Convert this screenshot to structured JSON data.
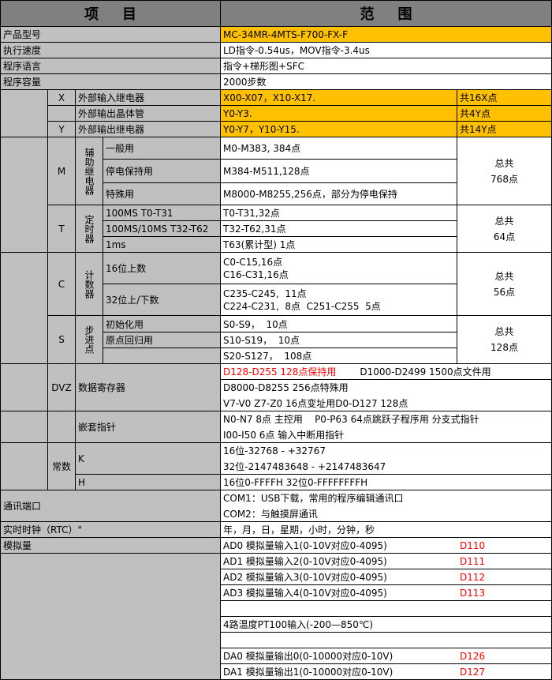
{
  "header": {
    "item": "项目",
    "range": "范围"
  },
  "rows": {
    "model": {
      "label": "产品型号",
      "value": "MC-34MR-4MTS-F700-FX-F"
    },
    "speed": {
      "label": "执行速度",
      "value": "LD指令-0.54us，MOV指令-3.4us"
    },
    "lang": {
      "label": "程序语言",
      "value": "指令+梯形图+SFC"
    },
    "capacity": {
      "label": "程序容量",
      "value": "2000步数"
    }
  },
  "io": [
    {
      "code": "X",
      "label": "外部输入继电器",
      "value": "X00-X07，X10-X17.",
      "count": "共16X点"
    },
    {
      "code": "",
      "label": "外部输出晶体管",
      "value": "Y0-Y3.",
      "count": "共4Y点"
    },
    {
      "code": "Y",
      "label": "外部输出继电器",
      "value": "Y0-Y7，Y10-Y15.",
      "count": "共14Y点"
    }
  ],
  "m": {
    "code": "M",
    "group": "辅助继电器",
    "items": [
      {
        "label": "一般用",
        "value": "M0-M383, 384点"
      },
      {
        "label": "停电保持用",
        "value": "M384-M511,128点"
      },
      {
        "label": "特殊用",
        "value": "M8000-M8255,256点，部分为停电保持"
      }
    ],
    "total1": "总共",
    "total2": "768点"
  },
  "t": {
    "code": "T",
    "group": "定时器",
    "items": [
      {
        "label": "100MS T0-T31",
        "value": "T0-T31,32点"
      },
      {
        "label": "100MS/10MS T32-T62",
        "value": "T32-T62,31点"
      },
      {
        "label": "1ms",
        "value": "T63(累计型) 1点"
      }
    ],
    "total1": "总共",
    "total2": "64点"
  },
  "cnt": {
    "code": "C",
    "group": "计数器",
    "items": [
      {
        "label": "16位上数",
        "v1": "C0-C15,16点",
        "v2": "C16-C31,16点"
      },
      {
        "label": "32位上/下数",
        "v1": "C235-C245,  11点",
        "v2": "C224-C231,  8点  C251-C255  5点"
      }
    ],
    "total1": "总共",
    "total2": "56点"
  },
  "s": {
    "code": "S",
    "group": "步进点",
    "items": [
      {
        "label": "初始化用",
        "value": "S0-S9，  10点"
      },
      {
        "label": "原点回归用",
        "value": "S10-S19，  10点"
      },
      {
        "label": "",
        "value": "S20-S127，  108点"
      }
    ],
    "total1": "总共",
    "total2": "128点"
  },
  "dvz": {
    "code": "DVZ",
    "label": "数据寄存器",
    "v1_red": "D128-D255 128点保持用",
    "v1": "D1000-D2499 1500点文件用",
    "v2": "D8000-D8255 256点特殊用",
    "v3": "V7-V0 Z7-Z0 16点变址用D0-D127 128点"
  },
  "nest": {
    "label": "嵌套指针",
    "v1": "N0-N7 8点 主控用    P0-P63 64点跳跃子程序用 分支式指针",
    "v2": "I00-I50 6点 输入中断用指针"
  },
  "const": {
    "label": "常数",
    "k": "K",
    "k1": "16位-32768 - +32767",
    "k2": "32位-2147483648 - +2147483647",
    "h": "H",
    "h1": "16位0-FFFFH 32位0-FFFFFFFFH"
  },
  "comm": {
    "label": "通讯端口",
    "v1": "COM1：USB下载，常用的程序编辑通讯口",
    "v2": "COM2：与触摸屏通讯"
  },
  "rtc": {
    "label": "实时时钟（RTC）\"",
    "value": "年，月，日，星期，小时，分钟，秒"
  },
  "analog": {
    "label": "模拟量",
    "rows": [
      {
        "value": "AD0 模拟量输入1(0-10V对应0-4095)",
        "reg": "D110"
      },
      {
        "value": "AD1 模拟量输入2(0-10V对应0-4095)",
        "reg": "D111"
      },
      {
        "value": "AD2 模拟量输入3(0-10V对应0-4095)",
        "reg": "D112"
      },
      {
        "value": "AD3 模拟量输入4(0-10V对应0-4095)",
        "reg": "D113"
      },
      {
        "value": "",
        "reg": ""
      },
      {
        "value": "4路温度PT100输入(-200—850℃)",
        "reg": ""
      },
      {
        "value": "",
        "reg": ""
      },
      {
        "value": "DA0 模拟量输出0(0-10000对应0-10V)",
        "reg": "D126"
      },
      {
        "value": "DA1 模拟量输出1(0-10000对应0-10V)",
        "reg": "D127"
      }
    ]
  },
  "colors": {
    "header": "#808080",
    "label": "#c0c0c0",
    "highlight": "#ffc000",
    "red": "#ff0000"
  }
}
